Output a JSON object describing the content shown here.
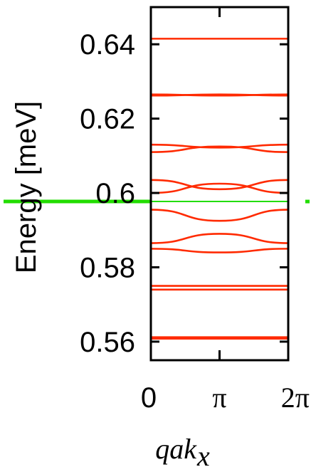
{
  "chart_data": {
    "type": "line",
    "xlabel": "qak",
    "xlabel_sub": "x",
    "ylabel": "Energy [meV]",
    "xlim": [
      0,
      6.2832
    ],
    "ylim": [
      0.555,
      0.65
    ],
    "x_ticks": [
      {
        "value": 0,
        "label": "0"
      },
      {
        "value": 3.1416,
        "label": "π"
      },
      {
        "value": 6.2832,
        "label": "2π"
      }
    ],
    "y_ticks": [
      {
        "value": 0.56,
        "label": "0.56"
      },
      {
        "value": 0.58,
        "label": "0.58"
      },
      {
        "value": 0.6,
        "label": "0.6"
      },
      {
        "value": 0.62,
        "label": "0.62"
      },
      {
        "value": 0.64,
        "label": "0.64"
      }
    ],
    "grid": false,
    "legend": "none",
    "band_color": "#ff2a00",
    "reference_color": "#22dd00",
    "reference_line": {
      "y": 0.5977
    },
    "bands": [
      {
        "x": [
          0,
          3.1416,
          6.2832
        ],
        "y": [
          0.6415,
          0.6415,
          0.6415
        ]
      },
      {
        "x": [
          0,
          3.1416,
          6.2832
        ],
        "y": [
          0.6265,
          0.6262,
          0.6265
        ]
      },
      {
        "x": [
          0,
          3.1416,
          6.2832
        ],
        "y": [
          0.6262,
          0.6265,
          0.6262
        ]
      },
      {
        "x": [
          0,
          3.1416,
          6.2832
        ],
        "y": [
          0.613,
          0.6122,
          0.613
        ]
      },
      {
        "x": [
          0,
          3.1416,
          6.2832
        ],
        "y": [
          0.611,
          0.6125,
          0.611
        ]
      },
      {
        "x": [
          0,
          3.1416,
          6.2832
        ],
        "y": [
          0.6035,
          0.601,
          0.6035
        ]
      },
      {
        "x": [
          0,
          3.1416,
          6.2832
        ],
        "y": [
          0.6,
          0.6025,
          0.6
        ]
      },
      {
        "x": [
          0,
          3.1416,
          6.2832
        ],
        "y": [
          0.5955,
          0.5925,
          0.5955
        ]
      },
      {
        "x": [
          0,
          3.1416,
          6.2832
        ],
        "y": [
          0.5865,
          0.589,
          0.5865
        ]
      },
      {
        "x": [
          0,
          3.1416,
          6.2832
        ],
        "y": [
          0.585,
          0.584,
          0.585
        ]
      },
      {
        "x": [
          0,
          3.1416,
          6.2832
        ],
        "y": [
          0.575,
          0.575,
          0.575
        ]
      },
      {
        "x": [
          0,
          3.1416,
          6.2832
        ],
        "y": [
          0.574,
          0.574,
          0.574
        ]
      },
      {
        "x": [
          0,
          3.1416,
          6.2832
        ],
        "y": [
          0.5612,
          0.5612,
          0.5612
        ]
      },
      {
        "x": [
          0,
          3.1416,
          6.2832
        ],
        "y": [
          0.5608,
          0.5608,
          0.5608
        ]
      }
    ]
  }
}
